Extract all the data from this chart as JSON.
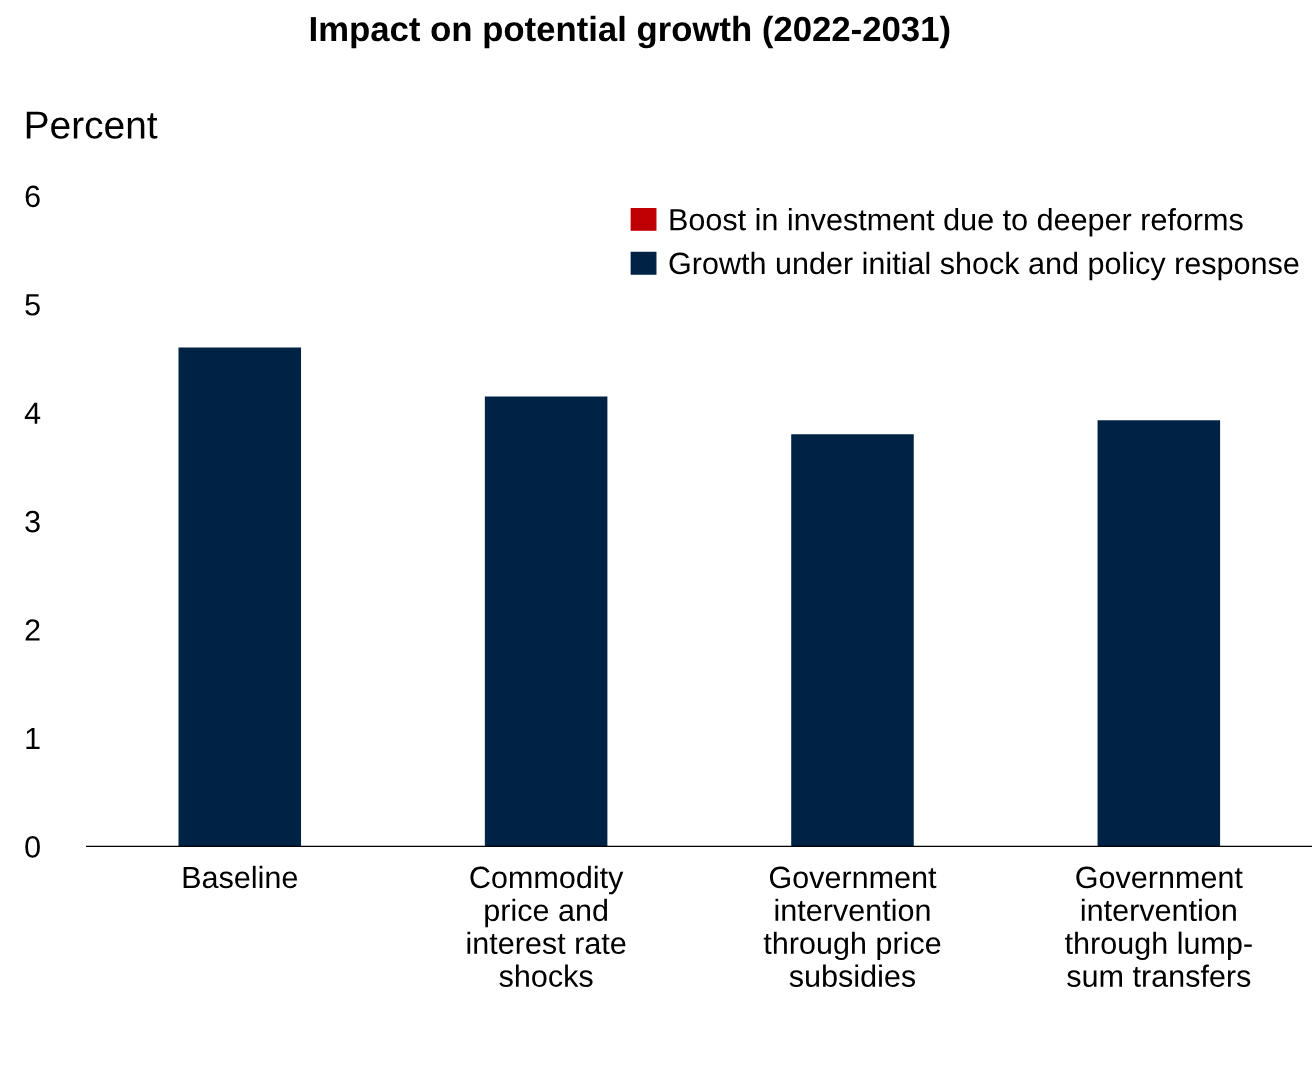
{
  "chart_data": {
    "type": "bar",
    "title": "Impact on potential growth (2022-2031)",
    "ylabel": "Percent",
    "categories": [
      "Baseline",
      "Commodity\nprice and\ninterest rate\nshocks",
      "Government\nintervention\nthrough price\nsubsidies",
      "Government\nintervention\nthrough lump-\nsum transfers"
    ],
    "series": [
      {
        "name": "Growth under initial shock and policy response",
        "color": "#002345",
        "values": [
          4.6,
          4.15,
          3.8,
          3.93
        ]
      },
      {
        "name": "Boost in investment due to deeper reforms",
        "color": "#c00000",
        "values": [
          0,
          0,
          0,
          0
        ]
      }
    ],
    "ylim": [
      0,
      6
    ],
    "yticks": [
      0,
      1,
      2,
      3,
      4,
      5,
      6
    ],
    "grid": false,
    "legend": "top right"
  }
}
